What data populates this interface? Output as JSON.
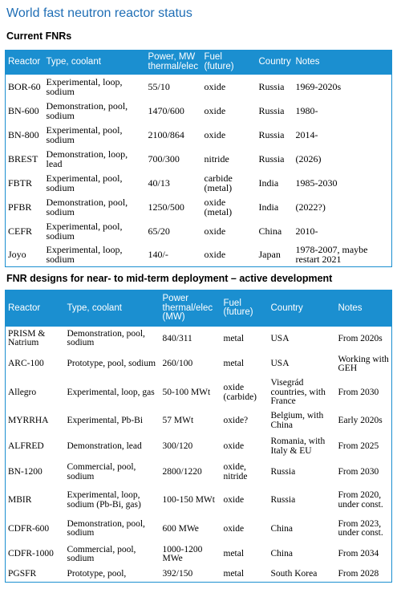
{
  "title": "World fast neutron reactor status",
  "current": {
    "section_title": "Current FNRs",
    "headers": [
      "Reactor",
      "Type, coolant",
      "Power, MW thermal/elec",
      "Fuel (future)",
      "Country",
      "Notes"
    ],
    "rows": [
      [
        "BOR-60",
        "Experimental, loop, sodium",
        "55/10",
        "oxide",
        "Russia",
        "1969-2020s"
      ],
      [
        "BN-600",
        "Demonstration, pool, sodium",
        "1470/600",
        "oxide",
        "Russia",
        "1980-"
      ],
      [
        "BN-800",
        "Experimental, pool, sodium",
        "2100/864",
        "oxide",
        "Russia",
        "2014-"
      ],
      [
        "BREST",
        "Demonstration, loop, lead",
        "700/300",
        "nitride",
        "Russia",
        "(2026)"
      ],
      [
        "FBTR",
        "Experimental, pool, sodium",
        "40/13",
        "carbide (metal)",
        "India",
        "1985-2030"
      ],
      [
        "PFBR",
        "Demonstration, pool, sodium",
        "1250/500",
        "oxide (metal)",
        "India",
        "(2022?)"
      ],
      [
        "CEFR",
        "Experimental, pool, sodium",
        "65/20",
        "oxide",
        "China",
        "2010-"
      ],
      [
        "Joyo",
        "Experimental, loop, sodium",
        "140/-",
        "oxide",
        "Japan",
        "1978-2007, maybe restart 2021"
      ]
    ]
  },
  "designs": {
    "section_title": "FNR designs for near- to mid-term deployment – active development",
    "headers": [
      "Reactor",
      "Type, coolant",
      "Power thermal/elec (MW)",
      "Fuel (future)",
      "Country",
      "Notes"
    ],
    "rows": [
      [
        "PRISM & Natrium",
        "Demonstration, pool, sodium",
        "840/311",
        "metal",
        "USA",
        "From 2020s"
      ],
      [
        "ARC-100",
        "Prototype, pool, sodium",
        "260/100",
        "metal",
        "USA",
        "Working with GEH"
      ],
      [
        "Allegro",
        "Experimental, loop, gas",
        "50-100 MWt",
        "oxide (carbide)",
        "Visegrád countries, with France",
        "From 2030"
      ],
      [
        "MYRRHA",
        "Experimental, Pb-Bi",
        "57 MWt",
        "oxide?",
        "Belgium, with China",
        "Early 2020s"
      ],
      [
        "ALFRED",
        "Demonstration, lead",
        "300/120",
        "oxide",
        "Romania, with Italy & EU",
        "From 2025"
      ],
      [
        "BN-1200",
        "Commercial, pool, sodium",
        "2800/1220",
        "oxide, nitride",
        "Russia",
        "From 2030"
      ],
      [
        "MBIR",
        "Experimental, loop, sodium (Pb-Bi, gas)",
        "100-150 MWt",
        "oxide",
        "Russia",
        "From 2020, under const."
      ],
      [
        "CDFR-600",
        "Demonstration, pool, sodium",
        "600 MWe",
        "oxide",
        "China",
        "From 2023, under const."
      ],
      [
        "CDFR-1000",
        "Commercial, pool, sodium",
        "1000-1200 MWe",
        "metal",
        "China",
        "From 2034"
      ],
      [
        "PGSFR",
        "Prototype, pool,",
        "392/150",
        "metal",
        "South Korea",
        "From 2028"
      ]
    ]
  }
}
